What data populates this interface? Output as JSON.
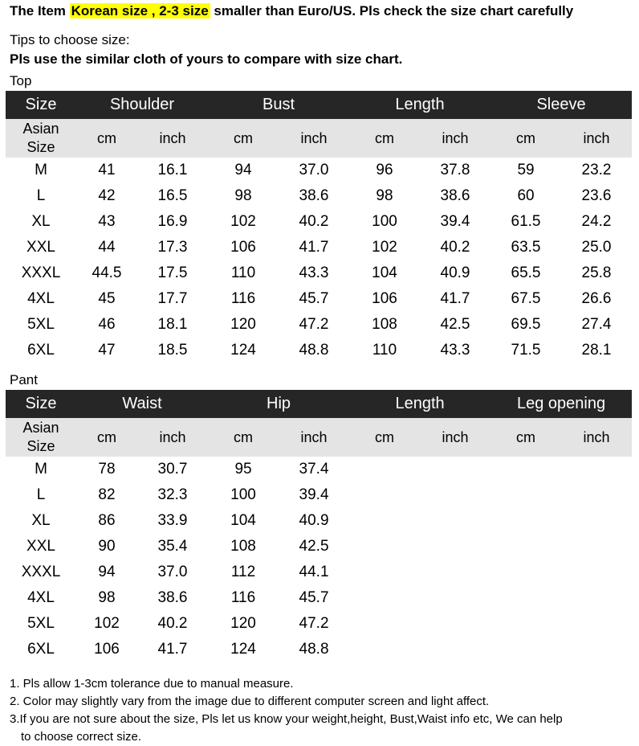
{
  "headline": {
    "prefix": "The Item ",
    "highlight": "Korean size , 2-3 size",
    "suffix": " smaller than Euro/US. Pls check the size chart carefully"
  },
  "tips_label": "Tips to choose size:",
  "compare_line": "Pls use the similar cloth of yours to compare with size chart.",
  "top": {
    "label": "Top",
    "headers": [
      "Size",
      "Shoulder",
      "Bust",
      "Length",
      "Sleeve"
    ],
    "sub_headers": [
      "Asian Size",
      "cm",
      "inch",
      "cm",
      "inch",
      "cm",
      "inch",
      "cm",
      "inch"
    ],
    "rows": [
      [
        "M",
        "41",
        "16.1",
        "94",
        "37.0",
        "96",
        "37.8",
        "59",
        "23.2"
      ],
      [
        "L",
        "42",
        "16.5",
        "98",
        "38.6",
        "98",
        "38.6",
        "60",
        "23.6"
      ],
      [
        "XL",
        "43",
        "16.9",
        "102",
        "40.2",
        "100",
        "39.4",
        "61.5",
        "24.2"
      ],
      [
        "XXL",
        "44",
        "17.3",
        "106",
        "41.7",
        "102",
        "40.2",
        "63.5",
        "25.0"
      ],
      [
        "XXXL",
        "44.5",
        "17.5",
        "110",
        "43.3",
        "104",
        "40.9",
        "65.5",
        "25.8"
      ],
      [
        "4XL",
        "45",
        "17.7",
        "116",
        "45.7",
        "106",
        "41.7",
        "67.5",
        "26.6"
      ],
      [
        "5XL",
        "46",
        "18.1",
        "120",
        "47.2",
        "108",
        "42.5",
        "69.5",
        "27.4"
      ],
      [
        "6XL",
        "47",
        "18.5",
        "124",
        "48.8",
        "110",
        "43.3",
        "71.5",
        "28.1"
      ]
    ]
  },
  "pant": {
    "label": "Pant",
    "headers": [
      "Size",
      "Waist",
      "Hip",
      "Length",
      "Leg opening"
    ],
    "sub_headers": [
      "Asian Size",
      "cm",
      "inch",
      "cm",
      "inch",
      "cm",
      "inch",
      "cm",
      "inch"
    ],
    "rows": [
      [
        "M",
        "78",
        "30.7",
        "95",
        "37.4",
        "",
        "",
        "",
        ""
      ],
      [
        "L",
        "82",
        "32.3",
        "100",
        "39.4",
        "",
        "",
        "",
        ""
      ],
      [
        "XL",
        "86",
        "33.9",
        "104",
        "40.9",
        "",
        "",
        "",
        ""
      ],
      [
        "XXL",
        "90",
        "35.4",
        "108",
        "42.5",
        "",
        "",
        "",
        ""
      ],
      [
        "XXXL",
        "94",
        "37.0",
        "112",
        "44.1",
        "",
        "",
        "",
        ""
      ],
      [
        "4XL",
        "98",
        "38.6",
        "116",
        "45.7",
        "",
        "",
        "",
        ""
      ],
      [
        "5XL",
        "102",
        "40.2",
        "120",
        "47.2",
        "",
        "",
        "",
        ""
      ],
      [
        "6XL",
        "106",
        "41.7",
        "124",
        "48.8",
        "",
        "",
        "",
        ""
      ]
    ]
  },
  "notes": [
    "1. Pls allow 1-3cm tolerance due to manual measure.",
    "2. Color may slightly vary from the image due to different computer screen and light affect.",
    "3.If you are not sure about the size, Pls let us know your weight,height, Bust,Waist info etc, We can help",
    "to choose correct size."
  ],
  "colors": {
    "header_bg": "#262626",
    "subheader_bg": "#e4e4e4",
    "highlight": "#ffff00"
  }
}
